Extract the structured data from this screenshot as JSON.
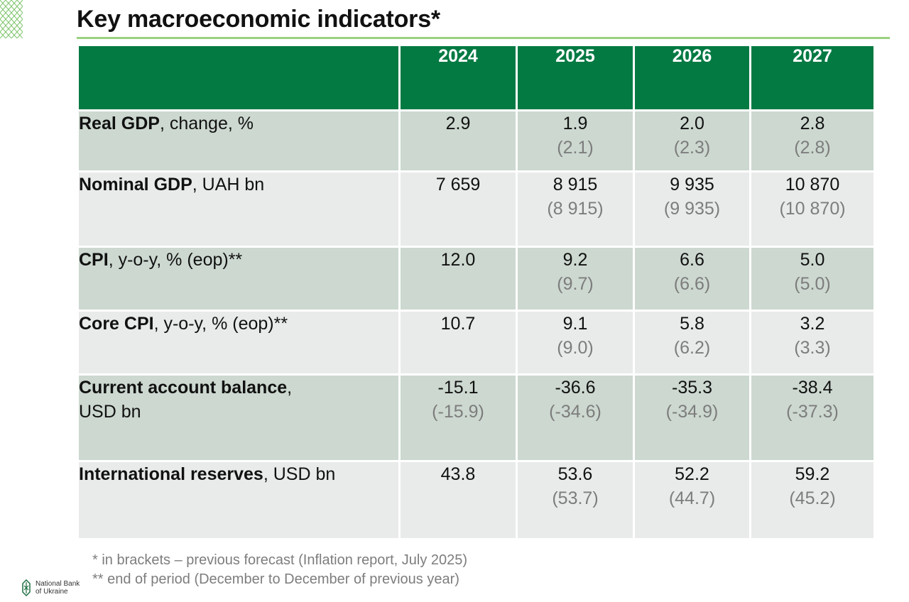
{
  "title": "Key macroeconomic indicators*",
  "columns": [
    "2024",
    "2025",
    "2026",
    "2027"
  ],
  "rows": [
    {
      "label_bold": "Real GDP",
      "label_rest": ", change, %",
      "label_line2": "",
      "values": [
        {
          "current": "2.9",
          "previous": ""
        },
        {
          "current": "1.9",
          "previous": "(2.1)"
        },
        {
          "current": "2.0",
          "previous": "(2.3)"
        },
        {
          "current": "2.8",
          "previous": "(2.8)"
        }
      ]
    },
    {
      "label_bold": "Nominal GDP",
      "label_rest": ", UAH bn",
      "label_line2": "",
      "values": [
        {
          "current": "7 659",
          "previous": ""
        },
        {
          "current": "8 915",
          "previous": "(8 915)"
        },
        {
          "current": "9 935",
          "previous": "(9 935)"
        },
        {
          "current": "10 870",
          "previous": "(10 870)"
        }
      ]
    },
    {
      "label_bold": "CPI",
      "label_rest": ", y-o-y, % (eop)**",
      "label_line2": "",
      "values": [
        {
          "current": "12.0",
          "previous": ""
        },
        {
          "current": "9.2",
          "previous": "(9.7)"
        },
        {
          "current": "6.6",
          "previous": "(6.6)"
        },
        {
          "current": "5.0",
          "previous": "(5.0)"
        }
      ]
    },
    {
      "label_bold": "Core CPI",
      "label_rest": ", y-o-y, % (eop)**",
      "label_line2": "",
      "values": [
        {
          "current": "10.7",
          "previous": ""
        },
        {
          "current": "9.1",
          "previous": "(9.0)"
        },
        {
          "current": "5.8",
          "previous": "(6.2)"
        },
        {
          "current": "3.2",
          "previous": "(3.3)"
        }
      ]
    },
    {
      "label_bold": "Current account balance",
      "label_rest": ",",
      "label_line2": "USD bn",
      "values": [
        {
          "current": "-15.1",
          "previous": "(-15.9)"
        },
        {
          "current": "-36.6",
          "previous": "(-34.6)"
        },
        {
          "current": "-35.3",
          "previous": "(-34.9)"
        },
        {
          "current": "-38.4",
          "previous": "(-37.3)"
        }
      ]
    },
    {
      "label_bold": "International reserves",
      "label_rest": ", USD bn",
      "label_line2": "",
      "values": [
        {
          "current": "43.8",
          "previous": ""
        },
        {
          "current": "53.6",
          "previous": "(53.7)"
        },
        {
          "current": "52.2",
          "previous": "(44.7)"
        },
        {
          "current": "59.2",
          "previous": "(45.2)"
        }
      ]
    }
  ],
  "footnotes": [
    "* in brackets – previous forecast (Inflation report, July 2025)",
    "** end of period (December to December of previous year)"
  ],
  "logo": {
    "text": "National Bank\nof Ukraine",
    "icon": "nbu-logo-icon"
  },
  "colors": {
    "header_green": "#047a43",
    "rule_green": "#9bd17f",
    "row_shade": "#ccd8d0",
    "row_light": "#e8ebe9",
    "previous_forecast_gray": "#7d7d7d"
  }
}
